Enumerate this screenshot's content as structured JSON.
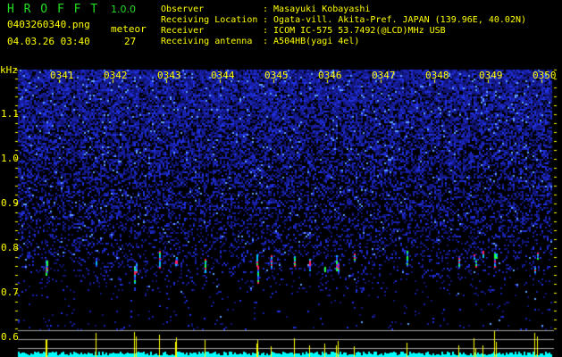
{
  "app": {
    "name": "H R O F F T",
    "version": "1.0.0"
  },
  "file": {
    "name": "0403260340.png",
    "datetime": "04.03.26 03:40"
  },
  "meteor": {
    "label": "meteor",
    "count": "27"
  },
  "info": [
    {
      "label": "Observer",
      "value": ": Masayuki Kobayashi"
    },
    {
      "label": "Receiving Location",
      "value": ": Ogata-vill. Akita-Pref. JAPAN (139.96E, 40.02N)"
    },
    {
      "label": "Receiver",
      "value": ": ICOM IC-575 53.7492(@LCD)MHz USB"
    },
    {
      "label": "Receiving antenna",
      "value": ": A504HB(yagi 4el)"
    }
  ],
  "spectrogram": {
    "unit": "kHz",
    "time_labels": [
      "0341",
      "0342",
      "0343",
      "0344",
      "0345",
      "0346",
      "0347",
      "0348",
      "0349",
      "0350"
    ],
    "freq_labels": [
      "1.1",
      "1.0",
      "0.9",
      "0.8",
      "0.7",
      "0.6"
    ],
    "colors": {
      "background": "#000000",
      "noise": "#2030c0",
      "echo": "#ff2060",
      "label": "#ffff00",
      "histogram": "#00ffff",
      "histogram_peak": "#ffff00",
      "guide": "#a0a0a0"
    }
  }
}
